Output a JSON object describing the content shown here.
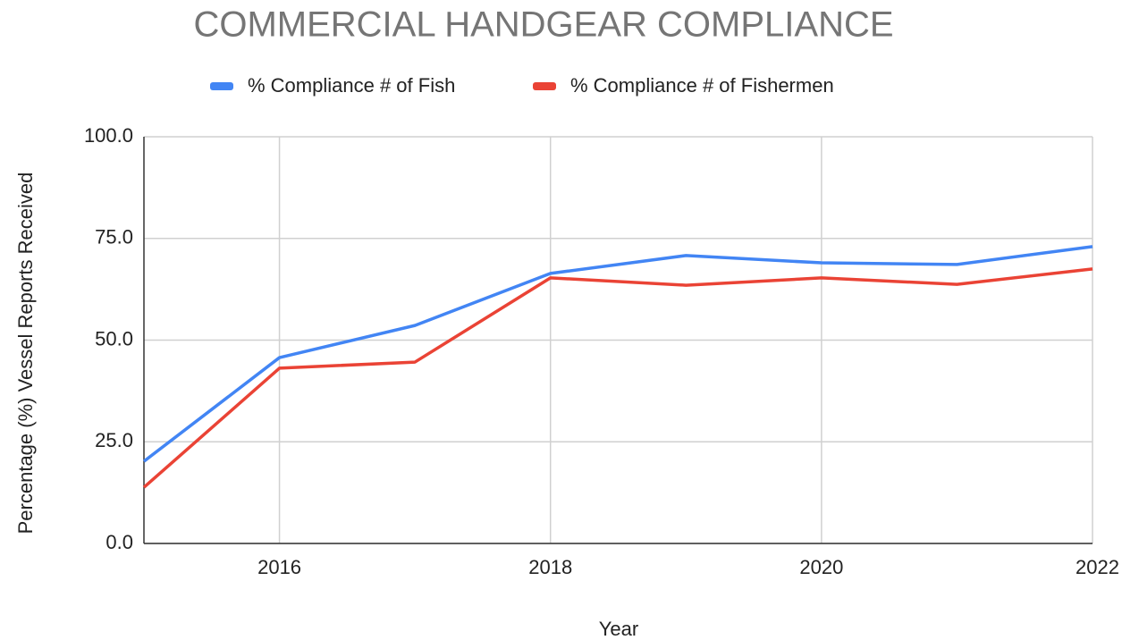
{
  "chart_data": {
    "type": "line",
    "title": "COMMERCIAL HANDGEAR COMPLIANCE",
    "x_label": "Year",
    "y_label": "Percentage (%) Vessel Reports Received",
    "x": [
      2015,
      2016,
      2017,
      2018,
      2019,
      2020,
      2021,
      2022
    ],
    "series": [
      {
        "name": "% Compliance # of Fish",
        "color": "#4285f4",
        "values": [
          20.2,
          45.7,
          53.6,
          66.4,
          70.8,
          69.0,
          68.6,
          73.0
        ]
      },
      {
        "name": "% Compliance # of Fishermen",
        "color": "#ea4335",
        "values": [
          13.8,
          43.1,
          44.6,
          65.3,
          63.5,
          65.3,
          63.7,
          67.5
        ]
      }
    ],
    "xlim": [
      2015,
      2022
    ],
    "xticks": [
      2016,
      2018,
      2020,
      2022
    ],
    "ylim": [
      0,
      100
    ],
    "yticks": [
      {
        "value": 0,
        "label": "0.0"
      },
      {
        "value": 25,
        "label": "25.0"
      },
      {
        "value": 50,
        "label": "50.0"
      },
      {
        "value": 75,
        "label": "75.0"
      },
      {
        "value": 100,
        "label": "100.0"
      }
    ],
    "grid": true,
    "legend": "top"
  }
}
